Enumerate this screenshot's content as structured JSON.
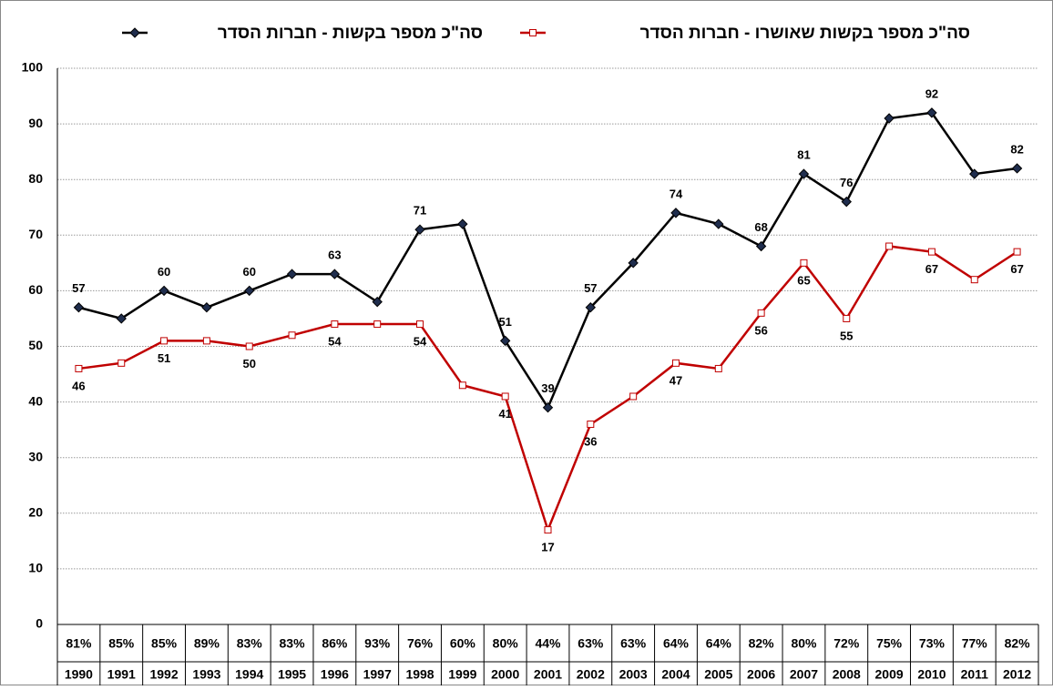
{
  "chart_data": {
    "type": "line",
    "categories": [
      "1990",
      "1991",
      "1992",
      "1993",
      "1994",
      "1995",
      "1996",
      "1997",
      "1998",
      "1999",
      "2000",
      "2001",
      "2002",
      "2003",
      "2004",
      "2005",
      "2006",
      "2007",
      "2008",
      "2009",
      "2010",
      "2011",
      "2012"
    ],
    "rate_labels": [
      "81%",
      "85%",
      "85%",
      "89%",
      "83%",
      "83%",
      "86%",
      "93%",
      "76%",
      "60%",
      "80%",
      "44%",
      "63%",
      "63%",
      "64%",
      "64%",
      "82%",
      "80%",
      "72%",
      "75%",
      "73%",
      "77%",
      "82%"
    ],
    "series": [
      {
        "name": "סה\"כ מספר בקשות - חברות הסדר",
        "color": "#000000",
        "marker": "diamond",
        "values": [
          57,
          55,
          60,
          57,
          60,
          63,
          63,
          58,
          71,
          72,
          51,
          39,
          57,
          65,
          74,
          72,
          68,
          81,
          76,
          91,
          92,
          81,
          82
        ],
        "value_labels": [
          "57",
          null,
          "60",
          null,
          "60",
          null,
          "63",
          null,
          "71",
          null,
          "51",
          "39",
          "57",
          null,
          "74",
          null,
          "68",
          "81",
          "76",
          null,
          "92",
          null,
          "82"
        ]
      },
      {
        "name": "סה\"כ מספר בקשות שאושרו - חברות הסדר",
        "color": "#c00000",
        "marker": "square",
        "values": [
          46,
          47,
          51,
          51,
          50,
          52,
          54,
          54,
          54,
          43,
          41,
          17,
          36,
          41,
          47,
          46,
          56,
          65,
          55,
          68,
          67,
          62,
          67
        ],
        "value_labels": [
          "46",
          null,
          "51",
          null,
          "50",
          null,
          "54",
          null,
          "54",
          null,
          "41",
          "17",
          "36",
          null,
          "47",
          null,
          "56",
          "65",
          "55",
          null,
          "67",
          null,
          "67"
        ]
      }
    ],
    "ylim": [
      0,
      100
    ],
    "yticks": [
      0,
      10,
      20,
      30,
      40,
      50,
      60,
      70,
      80,
      90,
      100
    ],
    "grid": true
  }
}
